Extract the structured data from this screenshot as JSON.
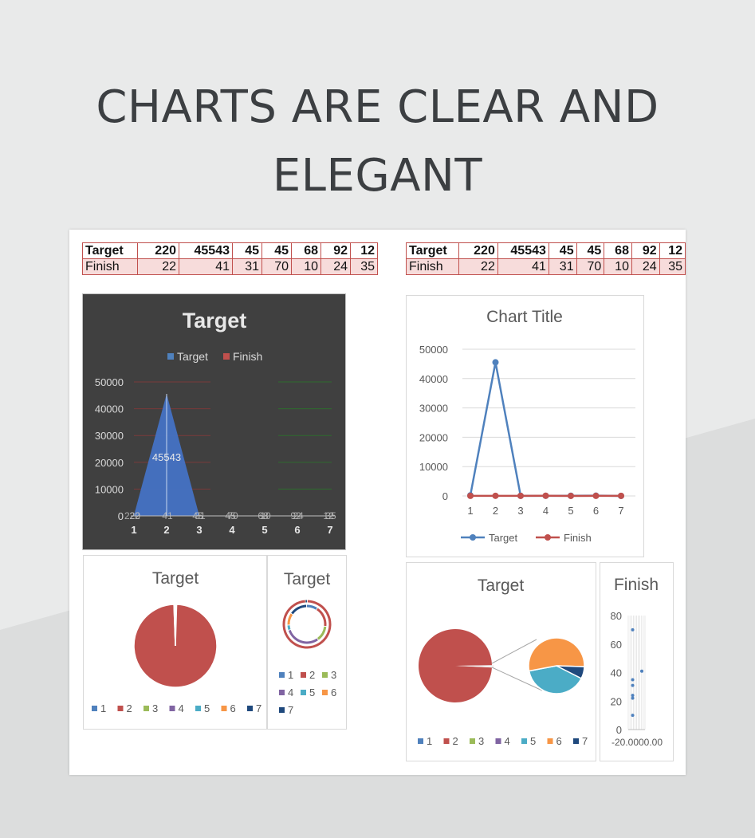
{
  "page": {
    "heading_line1": "CHARTS ARE CLEAR AND",
    "heading_line2": "ELEGANT"
  },
  "table": {
    "rows": [
      {
        "label": "Target",
        "values": [
          "220",
          "45543",
          "45",
          "45",
          "68",
          "92",
          "12"
        ]
      },
      {
        "label": "Finish",
        "values": [
          "22",
          "41",
          "31",
          "70",
          "10",
          "24",
          "35"
        ]
      }
    ]
  },
  "colors": {
    "target": "#4f81bd",
    "finish": "#c0504d",
    "dark_panel": "#404040",
    "pie_series": [
      "#4f81bd",
      "#c0504d",
      "#9bbb59",
      "#8064a2",
      "#4bacc6",
      "#f79646",
      "#1f497d"
    ]
  },
  "chart_data": [
    {
      "id": "area_dark",
      "type": "area",
      "title": "Target",
      "legend": [
        "Target",
        "Finish"
      ],
      "legend_position": "top",
      "categories": [
        "1",
        "2",
        "3",
        "4",
        "5",
        "6",
        "7"
      ],
      "series": [
        {
          "name": "Target",
          "values": [
            220,
            45543,
            45,
            45,
            68,
            92,
            12
          ]
        },
        {
          "name": "Finish",
          "values": [
            22,
            41,
            31,
            70,
            10,
            24,
            35
          ]
        }
      ],
      "data_labels": {
        "Target": [
          "220",
          "45543",
          "45",
          "45",
          "68",
          "92",
          "12"
        ],
        "Finish": [
          "22",
          "41",
          "31",
          "70",
          "10",
          "24",
          "35"
        ]
      },
      "yticks": [
        "0",
        "10000",
        "20000",
        "30000",
        "40000",
        "50000"
      ],
      "ylim": [
        0,
        50000
      ],
      "grid": true
    },
    {
      "id": "line",
      "type": "line",
      "title": "Chart Title",
      "categories": [
        "1",
        "2",
        "3",
        "4",
        "5",
        "6",
        "7"
      ],
      "series": [
        {
          "name": "Target",
          "values": [
            220,
            45543,
            45,
            45,
            68,
            92,
            12
          ]
        },
        {
          "name": "Finish",
          "values": [
            22,
            41,
            31,
            70,
            10,
            24,
            35
          ]
        }
      ],
      "yticks": [
        "0",
        "10000",
        "20000",
        "30000",
        "40000",
        "50000"
      ],
      "ylim": [
        0,
        50000
      ],
      "legend_position": "bottom",
      "grid": true
    },
    {
      "id": "pie_target",
      "type": "pie",
      "title": "Target",
      "categories": [
        "1",
        "2",
        "3",
        "4",
        "5",
        "6",
        "7"
      ],
      "values": [
        220,
        45543,
        45,
        45,
        68,
        92,
        12
      ],
      "legend_position": "bottom"
    },
    {
      "id": "doughnut_target",
      "type": "doughnut",
      "title": "Target",
      "categories": [
        "1",
        "2",
        "3",
        "4",
        "5",
        "6",
        "7"
      ],
      "rings": [
        [
          220,
          45543,
          45,
          45,
          68,
          92,
          12
        ],
        [
          22,
          41,
          31,
          70,
          10,
          24,
          35
        ]
      ],
      "legend_position": "bottom"
    },
    {
      "id": "pie_of_pie",
      "type": "pie-of-pie",
      "title": "Target",
      "categories": [
        "1",
        "2",
        "3",
        "4",
        "5",
        "6",
        "7"
      ],
      "values": [
        220,
        45543,
        45,
        45,
        68,
        92,
        12
      ],
      "secondary": [
        "5",
        "6",
        "7"
      ],
      "legend_position": "bottom"
    },
    {
      "id": "scatter_finish",
      "type": "scatter",
      "title": "Finish",
      "values": [
        22,
        41,
        31,
        70,
        10,
        24,
        35
      ],
      "yticks": [
        "0",
        "20",
        "40",
        "60",
        "80"
      ],
      "ylim": [
        0,
        80
      ],
      "xtick_label": "-20.0000.00"
    }
  ]
}
